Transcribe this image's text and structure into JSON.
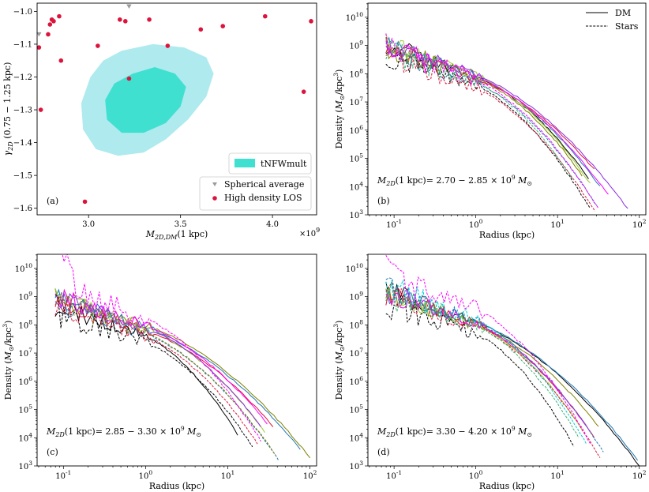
{
  "chart_data": [
    {
      "type": "scatter",
      "panel_label": "(a)",
      "xlabel": "M_{2D,DM}(1 kpc)",
      "xlabel_main": "M",
      "xlabel_sub": "2D,DM",
      "xlabel_tail": "(1 kpc)",
      "ylabel": "γ_{2D} (0.75 − 1.25 kpc)",
      "ylabel_main": "γ",
      "ylabel_sub": "2D",
      "ylabel_tail": " (0.75 − 1.25 kpc)",
      "x_multiplier": "×10",
      "x_multiplier_exp": "9",
      "xlim": [
        2.72,
        4.24
      ],
      "ylim": [
        -1.62,
        -0.975
      ],
      "xticks": [
        3.0,
        3.5,
        4.0
      ],
      "xtick_labels": [
        "3.0",
        "3.5",
        "4.0"
      ],
      "yticks": [
        -1.0,
        -1.1,
        -1.2,
        -1.3,
        -1.4,
        -1.5,
        -1.6
      ],
      "ytick_labels": [
        "−1.0",
        "−1.1",
        "−1.2",
        "−1.3",
        "−1.4",
        "−1.5",
        "−1.6"
      ],
      "contour_label": "tNFWmult",
      "contour_colors": {
        "outer": "#afeaee",
        "inner": "#40e0d0"
      },
      "contour_outer": [
        [
          3.18,
          -1.12
        ],
        [
          3.35,
          -1.1
        ],
        [
          3.52,
          -1.11
        ],
        [
          3.64,
          -1.14
        ],
        [
          3.68,
          -1.19
        ],
        [
          3.64,
          -1.26
        ],
        [
          3.54,
          -1.33
        ],
        [
          3.42,
          -1.39
        ],
        [
          3.3,
          -1.43
        ],
        [
          3.16,
          -1.44
        ],
        [
          3.04,
          -1.42
        ],
        [
          2.97,
          -1.36
        ],
        [
          2.96,
          -1.28
        ],
        [
          3.01,
          -1.2
        ],
        [
          3.08,
          -1.15
        ]
      ],
      "contour_inner": [
        [
          3.24,
          -1.19
        ],
        [
          3.36,
          -1.17
        ],
        [
          3.47,
          -1.19
        ],
        [
          3.53,
          -1.23
        ],
        [
          3.5,
          -1.29
        ],
        [
          3.42,
          -1.34
        ],
        [
          3.3,
          -1.37
        ],
        [
          3.18,
          -1.37
        ],
        [
          3.1,
          -1.33
        ],
        [
          3.09,
          -1.27
        ],
        [
          3.14,
          -1.22
        ]
      ],
      "series": [
        {
          "name": "Spherical average",
          "marker": "triangle-down",
          "color": "#9a9a9a",
          "points": [
            [
              2.73,
              -1.07
            ],
            [
              3.22,
              -0.985
            ]
          ]
        },
        {
          "name": "High density LOS",
          "marker": "circle",
          "color": "#dc143c",
          "points": [
            [
              2.73,
              -1.11
            ],
            [
              2.74,
              -1.3
            ],
            [
              2.78,
              -1.07
            ],
            [
              2.79,
              -1.04
            ],
            [
              2.8,
              -1.025
            ],
            [
              2.81,
              -1.03
            ],
            [
              2.84,
              -1.015
            ],
            [
              2.85,
              -1.15
            ],
            [
              2.98,
              -1.58
            ],
            [
              3.05,
              -1.105
            ],
            [
              3.17,
              -1.025
            ],
            [
              3.2,
              -1.03
            ],
            [
              3.22,
              -1.205
            ],
            [
              3.33,
              -1.025
            ],
            [
              3.43,
              -1.105
            ],
            [
              3.61,
              -1.055
            ],
            [
              3.73,
              -1.045
            ],
            [
              3.96,
              -1.015
            ],
            [
              4.17,
              -1.245
            ],
            [
              4.21,
              -1.03
            ]
          ]
        }
      ]
    },
    {
      "type": "line",
      "panel_label": "(b)",
      "xlabel": "Radius (kpc)",
      "ylabel": "Density (M_⊙/kpc³)",
      "ylabel_text": "Density (",
      "ylabel_m": "M",
      "ylabel_sun": "⊙",
      "ylabel_unit": "/kpc",
      "ylabel_exp": "3",
      "ylabel_close": ")",
      "xscale": "log",
      "yscale": "log",
      "xlim_log10": [
        -1.32,
        2.08
      ],
      "ylim_log10": [
        3,
        10.5
      ],
      "xtick_exps": [
        "-1",
        "0",
        "1",
        "2"
      ],
      "ytick_exps": [
        "3",
        "4",
        "5",
        "6",
        "7",
        "8",
        "9",
        "10"
      ],
      "tick_base": "10",
      "annotation": "M_{2D}(1 kpc)= 2.70 − 2.85 × 10^9 M_⊙",
      "annotation_parts": {
        "m": "M",
        "sub": "2D",
        "mid": "(1 kpc)= 2.70 − 2.85 × 10",
        "exp": "9",
        "sun": "M",
        "sunsub": "⊙"
      },
      "legend": [
        {
          "label": "DM",
          "style": "solid"
        },
        {
          "label": "Stars",
          "style": "dashed"
        }
      ],
      "series": [
        {
          "name": "DM-1",
          "style": "solid",
          "color": "#000000",
          "logr_max": 1.38,
          "logrho_1": 7.9,
          "logrho_end": 4.3,
          "noise": 0.22
        },
        {
          "name": "DM-2",
          "style": "solid",
          "color": "#808000",
          "logr_max": 1.3,
          "logrho_1": 7.85,
          "logrho_end": 4.4,
          "noise": 0.25
        },
        {
          "name": "DM-3",
          "style": "solid",
          "color": "#1f77b4",
          "logr_max": 1.52,
          "logrho_1": 7.9,
          "logrho_end": 4.0,
          "noise": 0.2
        },
        {
          "name": "DM-4",
          "style": "solid",
          "color": "#dc143c",
          "logr_max": 1.45,
          "logrho_1": 7.8,
          "logrho_end": 4.6,
          "noise": 0.2
        },
        {
          "name": "DM-5",
          "style": "solid",
          "color": "#9acd32",
          "logr_max": 1.4,
          "logrho_1": 7.95,
          "logrho_end": 4.1,
          "noise": 0.2
        },
        {
          "name": "DM-6",
          "style": "solid",
          "color": "#ff00ff",
          "logr_max": 1.62,
          "logrho_1": 7.9,
          "logrho_end": 3.7,
          "noise": 0.22
        },
        {
          "name": "DM-7",
          "style": "solid",
          "color": "#8a2be2",
          "logr_max": 1.86,
          "logrho_1": 7.95,
          "logrho_end": 3.2,
          "noise": 0.2
        },
        {
          "name": "Stars-1",
          "style": "dashed",
          "color": "#000000",
          "logr_max": 1.4,
          "logrho_1": 7.6,
          "logrho_end": 3.2,
          "noise": 0.25
        },
        {
          "name": "Stars-2",
          "style": "dashed",
          "color": "#1f77b4",
          "logr_max": 1.48,
          "logrho_1": 7.7,
          "logrho_end": 3.3,
          "noise": 0.25
        },
        {
          "name": "Stars-3",
          "style": "dashed",
          "color": "#dc143c",
          "logr_max": 1.46,
          "logrho_1": 7.5,
          "logrho_end": 3.1,
          "noise": 0.25
        },
        {
          "name": "Stars-4",
          "style": "dashed",
          "color": "#3cb371",
          "logr_max": 1.2,
          "logrho_1": 7.7,
          "logrho_end": 4.2,
          "noise": 0.3
        },
        {
          "name": "Stars-5",
          "style": "dashed",
          "color": "#ff00ff",
          "logr_max": 1.5,
          "logrho_1": 7.8,
          "logrho_end": 3.2,
          "noise": 0.3
        }
      ]
    },
    {
      "type": "line",
      "panel_label": "(c)",
      "xlabel": "Radius (kpc)",
      "ylabel": "Density (M_⊙/kpc³)",
      "ylabel_text": "Density (",
      "ylabel_m": "M",
      "ylabel_sun": "⊙",
      "ylabel_unit": "/kpc",
      "ylabel_exp": "3",
      "ylabel_close": ")",
      "xscale": "log",
      "yscale": "log",
      "xlim_log10": [
        -1.32,
        2.08
      ],
      "ylim_log10": [
        3,
        10.5
      ],
      "xtick_exps": [
        "-1",
        "0",
        "1",
        "2"
      ],
      "ytick_exps": [
        "3",
        "4",
        "5",
        "6",
        "7",
        "8",
        "9",
        "10"
      ],
      "tick_base": "10",
      "annotation": "M_{2D}(1 kpc)= 2.85 − 3.30 × 10^9 M_⊙",
      "annotation_parts": {
        "m": "M",
        "sub": "2D",
        "mid": "(1 kpc)= 2.85 − 3.30 × 10",
        "exp": "9",
        "sun": "M",
        "sunsub": "⊙"
      },
      "series": [
        {
          "name": "DM-1",
          "style": "solid",
          "color": "#000000",
          "logr_max": 1.12,
          "logrho_1": 7.6,
          "logrho_end": 4.1,
          "noise": 0.22
        },
        {
          "name": "DM-2",
          "style": "solid",
          "color": "#808000",
          "logr_max": 2.0,
          "logrho_1": 8.0,
          "logrho_end": 3.3,
          "noise": 0.2
        },
        {
          "name": "DM-3",
          "style": "solid",
          "color": "#1f77b4",
          "logr_max": 1.88,
          "logrho_1": 7.9,
          "logrho_end": 3.6,
          "noise": 0.2
        },
        {
          "name": "DM-4",
          "style": "solid",
          "color": "#dc143c",
          "logr_max": 1.55,
          "logrho_1": 7.8,
          "logrho_end": 4.4,
          "noise": 0.2
        },
        {
          "name": "DM-5",
          "style": "solid",
          "color": "#9acd32",
          "logr_max": 1.45,
          "logrho_1": 7.9,
          "logrho_end": 4.2,
          "noise": 0.22
        },
        {
          "name": "DM-6",
          "style": "solid",
          "color": "#ff00ff",
          "logr_max": 1.48,
          "logrho_1": 7.95,
          "logrho_end": 4.5,
          "noise": 0.22
        },
        {
          "name": "DM-7",
          "style": "solid",
          "color": "#8a2be2",
          "logr_max": 1.4,
          "logrho_1": 7.9,
          "logrho_end": 4.4,
          "noise": 0.2
        },
        {
          "name": "Stars-1",
          "style": "dashed",
          "color": "#000000",
          "logr_max": 1.3,
          "logrho_1": 7.4,
          "logrho_end": 3.7,
          "noise": 0.3
        },
        {
          "name": "Stars-2",
          "style": "dashed",
          "color": "#1f77b4",
          "logr_max": 1.62,
          "logrho_1": 7.7,
          "logrho_end": 3.2,
          "noise": 0.25
        },
        {
          "name": "Stars-3",
          "style": "dashed",
          "color": "#808000",
          "logr_max": 1.58,
          "logrho_1": 7.7,
          "logrho_end": 3.4,
          "noise": 0.25
        },
        {
          "name": "Stars-4",
          "style": "dashed",
          "color": "#dc143c",
          "logr_max": 1.36,
          "logrho_1": 7.6,
          "logrho_end": 3.8,
          "noise": 0.25
        },
        {
          "name": "Stars-5",
          "style": "dashed",
          "color": "#ff00ff",
          "logr_max": 1.4,
          "logrho_1": 8.25,
          "logrho_end": 3.9,
          "noise": 0.35,
          "inner_boost": 10.7
        }
      ]
    },
    {
      "type": "line",
      "panel_label": "(d)",
      "xlabel": "Radius (kpc)",
      "ylabel": "Density (M_⊙/kpc³)",
      "ylabel_text": "Density (",
      "ylabel_m": "M",
      "ylabel_sun": "⊙",
      "ylabel_unit": "/kpc",
      "ylabel_exp": "3",
      "ylabel_close": ")",
      "xscale": "log",
      "yscale": "log",
      "xlim_log10": [
        -1.32,
        2.08
      ],
      "ylim_log10": [
        3,
        10.5
      ],
      "xtick_exps": [
        "-1",
        "0",
        "1",
        "2"
      ],
      "ytick_exps": [
        "3",
        "4",
        "5",
        "6",
        "7",
        "8",
        "9",
        "10"
      ],
      "tick_base": "10",
      "annotation": "M_{2D}(1 kpc)= 3.30 − 4.20 × 10^9 M_⊙",
      "annotation_parts": {
        "m": "M",
        "sub": "2D",
        "mid": "(1 kpc)= 3.30 − 4.20 × 10",
        "exp": "9",
        "sun": "M",
        "sunsub": "⊙"
      },
      "series": [
        {
          "name": "DM-1",
          "style": "solid",
          "color": "#000000",
          "logr_max": 2.0,
          "logrho_1": 8.1,
          "logrho_end": 3.0,
          "noise": 0.22
        },
        {
          "name": "DM-2",
          "style": "solid",
          "color": "#1f77b4",
          "logr_max": 1.98,
          "logrho_1": 8.1,
          "logrho_end": 3.2,
          "noise": 0.22
        },
        {
          "name": "DM-3",
          "style": "solid",
          "color": "#808000",
          "logr_max": 1.5,
          "logrho_1": 8.0,
          "logrho_end": 4.4,
          "noise": 0.22
        },
        {
          "name": "DM-4",
          "style": "solid",
          "color": "#dc143c",
          "logr_max": 1.45,
          "logrho_1": 8.0,
          "logrho_end": 4.0,
          "noise": 0.22
        },
        {
          "name": "DM-5",
          "style": "solid",
          "color": "#9acd32",
          "logr_max": 1.3,
          "logrho_1": 8.0,
          "logrho_end": 4.3,
          "noise": 0.22
        },
        {
          "name": "DM-6",
          "style": "solid",
          "color": "#ff00ff",
          "logr_max": 1.4,
          "logrho_1": 8.05,
          "logrho_end": 4.2,
          "noise": 0.22
        },
        {
          "name": "Stars-1",
          "style": "dashed",
          "color": "#000000",
          "logr_max": 1.2,
          "logrho_1": 7.7,
          "logrho_end": 3.7,
          "noise": 0.3
        },
        {
          "name": "Stars-2",
          "style": "dashed",
          "color": "#1f77b4",
          "logr_max": 1.56,
          "logrho_1": 8.1,
          "logrho_end": 3.5,
          "noise": 0.3
        },
        {
          "name": "Stars-3",
          "style": "dashed",
          "color": "#dc143c",
          "logr_max": 1.52,
          "logrho_1": 8.0,
          "logrho_end": 3.3,
          "noise": 0.3
        },
        {
          "name": "Stars-4",
          "style": "dashed",
          "color": "#3cb371",
          "logr_max": 1.26,
          "logrho_1": 8.0,
          "logrho_end": 4.0,
          "noise": 0.3
        },
        {
          "name": "Stars-5",
          "style": "dashed",
          "color": "#ff00ff",
          "logr_max": 1.4,
          "logrho_1": 8.6,
          "logrho_end": 3.8,
          "noise": 0.35,
          "inner_boost": 10.5
        },
        {
          "name": "Stars-6",
          "style": "dashed",
          "color": "#00ced1",
          "logr_max": 1.35,
          "logrho_1": 8.2,
          "logrho_end": 3.8,
          "noise": 0.3
        }
      ]
    }
  ]
}
